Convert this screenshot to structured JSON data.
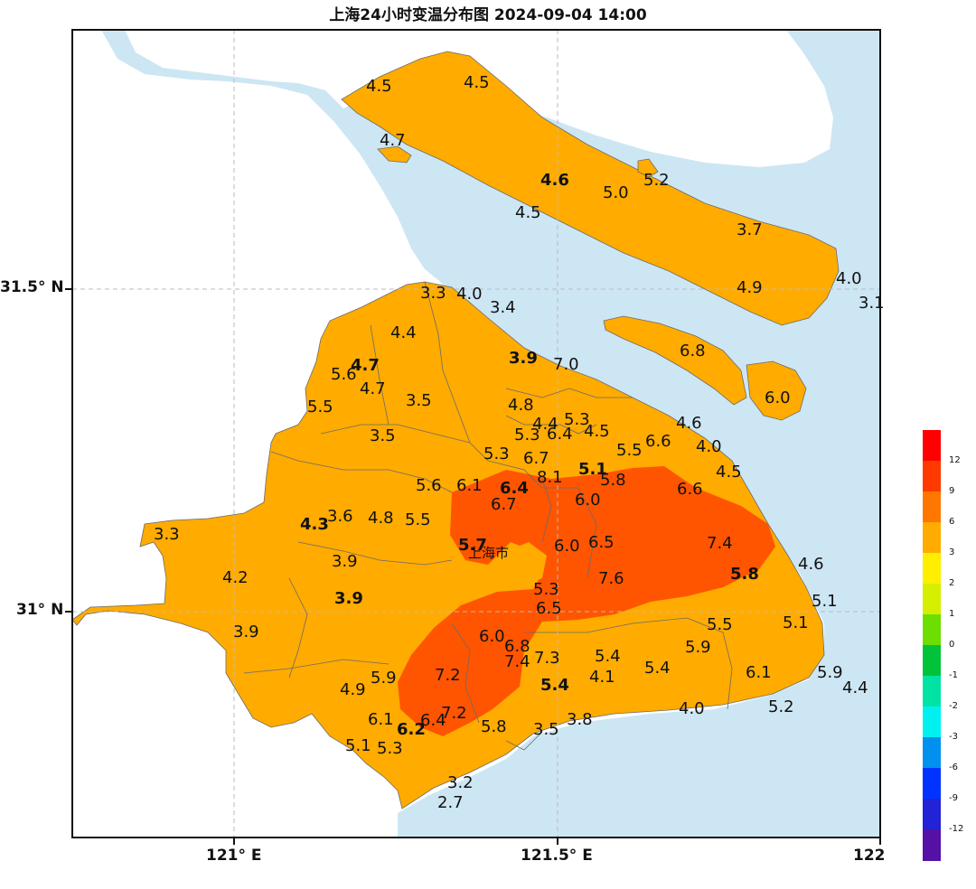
{
  "title": "上海24小时变温分布图 2024-09-04 14:00",
  "axes": {
    "x_ticks": [
      "121° E",
      "121.5° E",
      "122"
    ],
    "y_ticks": [
      "31.5° N",
      "31° N"
    ]
  },
  "city_label": "上海市",
  "colors": {
    "sea": "#cde6f4",
    "land_outside": "#ffffff",
    "band_3_6": "#ffab00",
    "band_6_9": "#ff5500",
    "boundary": "#6b6b6b"
  },
  "colorbar": {
    "ticks": [
      "12",
      "9",
      "6",
      "3",
      "2",
      "1",
      "0",
      "-1",
      "-2",
      "-3",
      "-6",
      "-9",
      "-12"
    ],
    "colors": [
      "#ff0000",
      "#ff3a00",
      "#ff7700",
      "#ffab00",
      "#ffee00",
      "#d6ee00",
      "#6dde00",
      "#00c33a",
      "#00e3a4",
      "#00f0f0",
      "#0090f0",
      "#0033ff",
      "#2222d6",
      "#5511a6"
    ]
  },
  "stations": [
    {
      "label": "4.5",
      "bold": false
    },
    {
      "label": "4.5",
      "bold": false
    },
    {
      "label": "4.7",
      "bold": false
    },
    {
      "label": "4.6",
      "bold": true
    },
    {
      "label": "5.0",
      "bold": false
    },
    {
      "label": "5.2",
      "bold": false
    },
    {
      "label": "4.5",
      "bold": false
    },
    {
      "label": "3.7",
      "bold": false
    },
    {
      "label": "4.9",
      "bold": false
    },
    {
      "label": "4.0",
      "bold": false
    },
    {
      "label": "3.1",
      "bold": false
    },
    {
      "label": "3.3",
      "bold": false
    },
    {
      "label": "4.0",
      "bold": false
    },
    {
      "label": "3.4",
      "bold": false
    },
    {
      "label": "4.4",
      "bold": false
    },
    {
      "label": "4.7",
      "bold": true
    },
    {
      "label": "5.6",
      "bold": false
    },
    {
      "label": "4.7",
      "bold": false
    },
    {
      "label": "5.5",
      "bold": false
    },
    {
      "label": "3.5",
      "bold": false
    },
    {
      "label": "3.9",
      "bold": true
    },
    {
      "label": "7.0",
      "bold": false
    },
    {
      "label": "6.8",
      "bold": false
    },
    {
      "label": "6.0",
      "bold": false
    },
    {
      "label": "4.8",
      "bold": false
    },
    {
      "label": "4.4",
      "bold": false
    },
    {
      "label": "5.3",
      "bold": false
    },
    {
      "label": "5.3",
      "bold": false
    },
    {
      "label": "6.4",
      "bold": false
    },
    {
      "label": "4.5",
      "bold": false
    },
    {
      "label": "4.6",
      "bold": false
    },
    {
      "label": "3.5",
      "bold": false
    },
    {
      "label": "5.3",
      "bold": false
    },
    {
      "label": "6.7",
      "bold": false
    },
    {
      "label": "5.5",
      "bold": false
    },
    {
      "label": "6.6",
      "bold": false
    },
    {
      "label": "4.0",
      "bold": false
    },
    {
      "label": "5.6",
      "bold": false
    },
    {
      "label": "6.1",
      "bold": false
    },
    {
      "label": "6.4",
      "bold": true
    },
    {
      "label": "8.1",
      "bold": false
    },
    {
      "label": "5.1",
      "bold": true
    },
    {
      "label": "5.8",
      "bold": false
    },
    {
      "label": "4.5",
      "bold": false
    },
    {
      "label": "6.7",
      "bold": false
    },
    {
      "label": "6.0",
      "bold": false
    },
    {
      "label": "6.6",
      "bold": false
    },
    {
      "label": "3.3",
      "bold": false
    },
    {
      "label": "4.3",
      "bold": true
    },
    {
      "label": "3.6",
      "bold": false
    },
    {
      "label": "4.8",
      "bold": false
    },
    {
      "label": "5.5",
      "bold": false
    },
    {
      "label": "5.7",
      "bold": true
    },
    {
      "label": "6.0",
      "bold": false
    },
    {
      "label": "6.5",
      "bold": false
    },
    {
      "label": "7.4",
      "bold": false
    },
    {
      "label": "3.9",
      "bold": false
    },
    {
      "label": "4.2",
      "bold": false
    },
    {
      "label": "7.6",
      "bold": false
    },
    {
      "label": "5.8",
      "bold": true
    },
    {
      "label": "4.6",
      "bold": false
    },
    {
      "label": "3.9",
      "bold": true
    },
    {
      "label": "5.3",
      "bold": false
    },
    {
      "label": "6.5",
      "bold": false
    },
    {
      "label": "5.1",
      "bold": false
    },
    {
      "label": "3.9",
      "bold": false
    },
    {
      "label": "5.5",
      "bold": false
    },
    {
      "label": "5.1",
      "bold": false
    },
    {
      "label": "6.0",
      "bold": false
    },
    {
      "label": "6.8",
      "bold": false
    },
    {
      "label": "5.9",
      "bold": false
    },
    {
      "label": "7.4",
      "bold": false
    },
    {
      "label": "7.3",
      "bold": false
    },
    {
      "label": "5.4",
      "bold": false
    },
    {
      "label": "7.2",
      "bold": false
    },
    {
      "label": "5.9",
      "bold": false
    },
    {
      "label": "5.4",
      "bold": true
    },
    {
      "label": "4.1",
      "bold": false
    },
    {
      "label": "5.4",
      "bold": false
    },
    {
      "label": "6.1",
      "bold": false
    },
    {
      "label": "5.9",
      "bold": false
    },
    {
      "label": "4.9",
      "bold": false
    },
    {
      "label": "4.4",
      "bold": false
    },
    {
      "label": "7.2",
      "bold": false
    },
    {
      "label": "4.0",
      "bold": false
    },
    {
      "label": "5.2",
      "bold": false
    },
    {
      "label": "6.1",
      "bold": false
    },
    {
      "label": "6.4",
      "bold": false
    },
    {
      "label": "6.2",
      "bold": true
    },
    {
      "label": "5.8",
      "bold": false
    },
    {
      "label": "3.8",
      "bold": false
    },
    {
      "label": "3.5",
      "bold": false
    },
    {
      "label": "5.1",
      "bold": false
    },
    {
      "label": "5.3",
      "bold": false
    },
    {
      "label": "3.2",
      "bold": false
    },
    {
      "label": "2.7",
      "bold": false
    }
  ]
}
